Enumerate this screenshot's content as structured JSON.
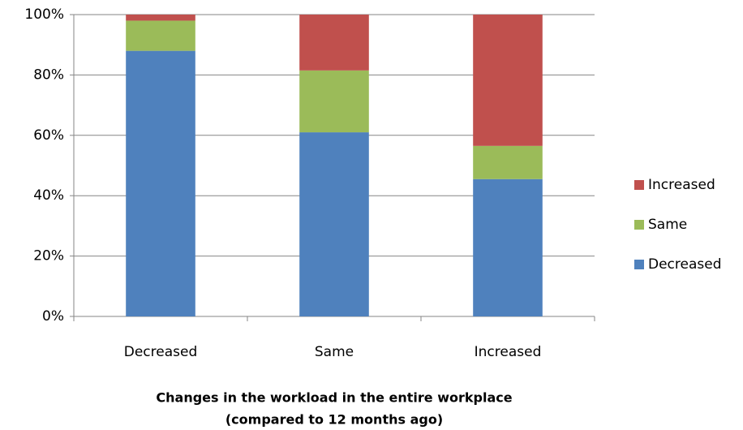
{
  "chart_data": {
    "type": "stacked_bar",
    "categories": [
      "Decreased",
      "Same",
      "Increased"
    ],
    "series": [
      {
        "name": "Decreased",
        "color": "#4f81bd",
        "values": [
          88,
          61,
          45.5
        ]
      },
      {
        "name": "Same",
        "color": "#9bbb59",
        "values": [
          10,
          20.5,
          11
        ]
      },
      {
        "name": "Increased",
        "color": "#c0504d",
        "values": [
          2,
          18.5,
          43.5
        ]
      }
    ],
    "ylim": [
      0,
      100
    ],
    "yticks": [
      {
        "value": 0,
        "label": "0%"
      },
      {
        "value": 20,
        "label": "20%"
      },
      {
        "value": 40,
        "label": "40%"
      },
      {
        "value": 60,
        "label": "60%"
      },
      {
        "value": 80,
        "label": "80%"
      },
      {
        "value": 100,
        "label": "100%"
      }
    ],
    "grid": true,
    "legend": "right",
    "xlabel": [
      "Changes in the workload  in the entire workplace",
      "(compared to 12 months ago)"
    ]
  }
}
